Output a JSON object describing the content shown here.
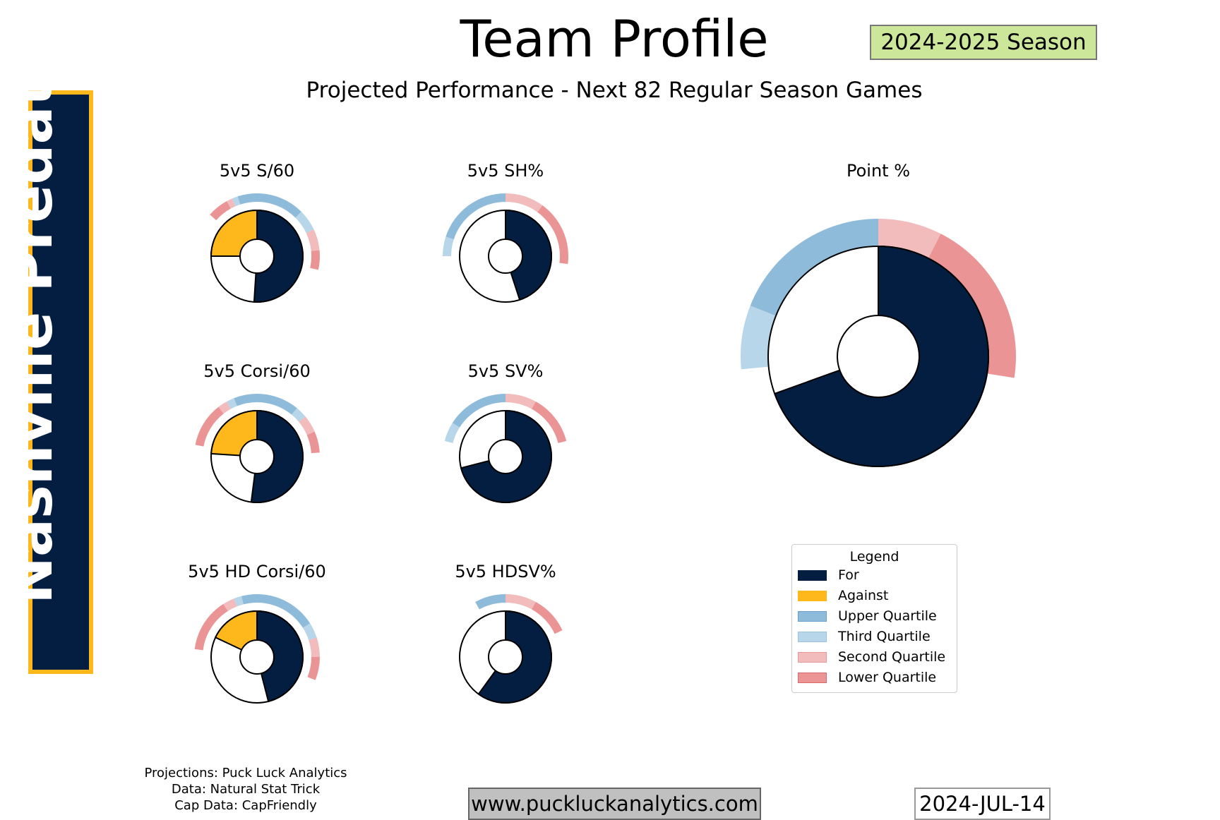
{
  "header": {
    "title": "Team Profile",
    "subtitle": "Projected Performance - Next 82 Regular Season Games",
    "season": "2024-2025 Season"
  },
  "team": {
    "name": "Nashville Predators",
    "primary_color": "#041e42",
    "accent_color": "#ffb81c"
  },
  "colors": {
    "for": "#041e42",
    "against": "#ffb81c",
    "upper_quartile": "#8fbbda",
    "third_quartile": "#b8d6e9",
    "second_quartile": "#f2bcbc",
    "lower_quartile": "#eb9495"
  },
  "chart_data": [
    {
      "type": "donut",
      "title": "5v5 S/60",
      "for_share": 0.51,
      "against_share": 0.25,
      "rings": {
        "for": [
          0.125,
          0.055,
          0.055,
          0.05
        ],
        "against": [
          0.05,
          0.015,
          0.015,
          0.055
        ]
      }
    },
    {
      "type": "donut",
      "title": "5v5 SH%",
      "for_share": 0.45,
      "against_share": 0,
      "rings": {
        "for": [
          0,
          0,
          0.1,
          0.17
        ],
        "against": [
          0.2,
          0.05,
          0,
          0
        ]
      }
    },
    {
      "type": "donut",
      "title": "5v5 Corsi/60",
      "for_share": 0.52,
      "against_share": 0.24,
      "rings": {
        "for": [
          0.11,
          0.03,
          0.045,
          0.055
        ],
        "against": [
          0.06,
          0.02,
          0.025,
          0.115
        ]
      }
    },
    {
      "type": "donut",
      "title": "5v5 SV%",
      "for_share": 0.71,
      "against_share": 0,
      "rings": {
        "for": [
          0,
          0,
          0.08,
          0.13
        ],
        "against": [
          0.16,
          0.05,
          0,
          0
        ]
      }
    },
    {
      "type": "donut",
      "title": "5v5 HD Corsi/60",
      "for_share": 0.46,
      "against_share": 0.18,
      "rings": {
        "for": [
          0.16,
          0.04,
          0.05,
          0.06
        ],
        "against": [
          0.04,
          0.02,
          0.03,
          0.14
        ]
      }
    },
    {
      "type": "donut",
      "title": "5v5 HDSV%",
      "for_share": 0.6,
      "against_share": 0,
      "rings": {
        "for": [
          0,
          0,
          0.08,
          0.1
        ],
        "against": [
          0.08,
          0,
          0,
          0
        ]
      }
    },
    {
      "type": "donut",
      "title": "Point %",
      "for_share": 0.695,
      "against_share": 0,
      "rings": {
        "for": [
          0,
          0,
          0.075,
          0.2
        ],
        "against": [
          0.19,
          0.075,
          0,
          0
        ]
      }
    }
  ],
  "legend": {
    "title": "Legend",
    "items": [
      {
        "label": "For",
        "color": "#041e42",
        "edge": "#041e42"
      },
      {
        "label": "Against",
        "color": "#ffb81c",
        "edge": "#ffb81c"
      },
      {
        "label": "Upper Quartile",
        "color": "#8fbbda",
        "edge": "#6a9fc8"
      },
      {
        "label": "Third Quartile",
        "color": "#b8d6e9",
        "edge": "#9cc3dd"
      },
      {
        "label": "Second Quartile",
        "color": "#f2bcbc",
        "edge": "#e89a9a"
      },
      {
        "label": "Lower Quartile",
        "color": "#eb9495",
        "edge": "#d96a6c"
      }
    ]
  },
  "footer": {
    "credits": [
      "Projections: Puck Luck Analytics",
      "Data: Natural Stat Trick",
      "Cap Data: CapFriendly"
    ],
    "website": "www.puckluckanalytics.com",
    "date": "2024-JUL-14"
  }
}
